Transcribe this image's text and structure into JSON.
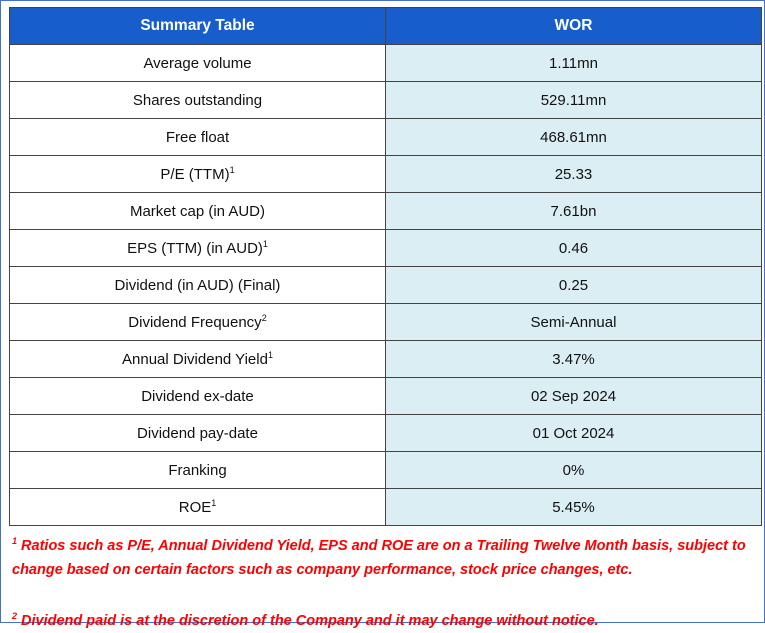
{
  "header": {
    "label": "Summary Table",
    "ticker": "WOR"
  },
  "rows": [
    {
      "label": "Average volume",
      "sup": "",
      "value": "1.11mn"
    },
    {
      "label": "Shares outstanding",
      "sup": "",
      "value": "529.11mn"
    },
    {
      "label": "Free float",
      "sup": "",
      "value": "468.61mn"
    },
    {
      "label": "P/E (TTM)",
      "sup": "1",
      "value": "25.33"
    },
    {
      "label": "Market cap (in AUD)",
      "sup": "",
      "value": "7.61bn"
    },
    {
      "label": "EPS (TTM) (in AUD)",
      "sup": "1",
      "value": "0.46"
    },
    {
      "label": "Dividend (in AUD) (Final)",
      "sup": "",
      "value": "0.25"
    },
    {
      "label": "Dividend Frequency",
      "sup": "2",
      "value": "Semi-Annual"
    },
    {
      "label": "Annual Dividend Yield",
      "sup": "1",
      "value": "3.47%"
    },
    {
      "label": "Dividend ex-date",
      "sup": "",
      "value": "02 Sep 2024"
    },
    {
      "label": "Dividend pay-date",
      "sup": "",
      "value": "01 Oct 2024"
    },
    {
      "label": "Franking",
      "sup": "",
      "value": "0%"
    },
    {
      "label": "ROE",
      "sup": "1",
      "value": "5.45%"
    }
  ],
  "footnotes": [
    {
      "mark": "1",
      "text": "Ratios such as P/E, Annual Dividend Yield, EPS and ROE are on a Trailing Twelve Month basis, subject to change based on certain factors such as company performance, stock price changes, etc."
    },
    {
      "mark": "2",
      "text": "Dividend paid is at the discretion of the Company and it may change without notice."
    }
  ],
  "colors": {
    "header_bg": "#175dcc",
    "value_bg": "#daeef3",
    "footnote": "#ff0000",
    "frame": "#4472c4"
  }
}
